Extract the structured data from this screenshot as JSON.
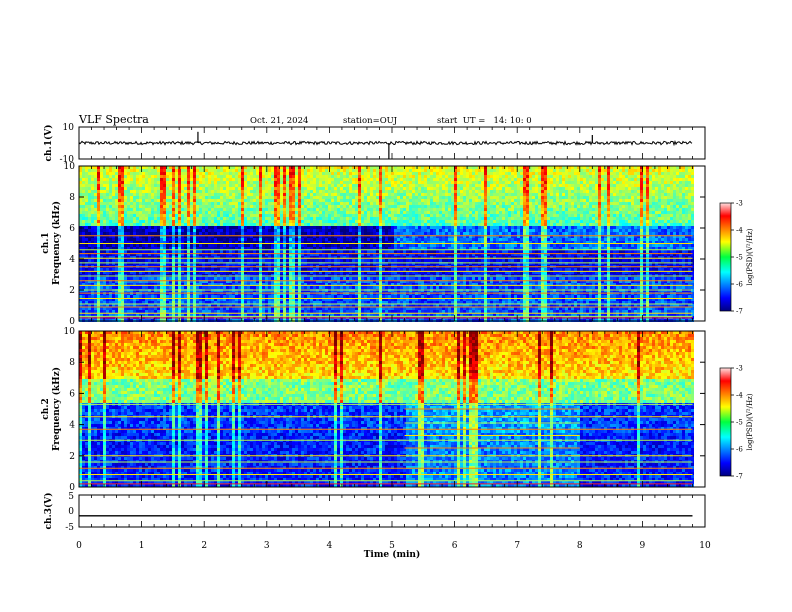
{
  "header": {
    "title": "VLF Spectra",
    "date": "Oct. 21, 2024",
    "station": "station=OUJ",
    "start_ut": "start  UT =   14: 10: 0"
  },
  "chart_data": [
    {
      "type": "line",
      "panel": "ch1-waveform",
      "ylabel": "ch.1(V)",
      "ylim": [
        -10,
        10
      ],
      "yticks": [
        "10",
        "-10"
      ],
      "series": [
        {
          "values_note_mean": 0,
          "amplitude": 1
        }
      ],
      "mean_level": 0,
      "noise_amplitude": 1,
      "spikes": [
        {
          "x": 1.9,
          "y": 7
        },
        {
          "x": 4.95,
          "y": -10
        },
        {
          "x": 8.2,
          "y": 5
        }
      ]
    },
    {
      "type": "heatmap",
      "panel": "ch1-spectrogram",
      "xlim": [
        0,
        10
      ],
      "ylim": [
        0,
        10
      ],
      "ylabel": "ch.1\nFrequency (kHz)",
      "ylabel_lines": [
        "ch.1",
        "Frequency (kHz)"
      ],
      "yticks": [
        "0",
        "2",
        "4",
        "6",
        "8",
        "10"
      ],
      "colorbar": {
        "label": "log(PSD)(V²/Hz)",
        "range": [
          -7,
          -3
        ],
        "ticks": [
          "-3",
          "-4",
          "-5",
          "-6",
          "-7"
        ]
      },
      "lines_khz": [
        0.3,
        0.5,
        0.9,
        1.1,
        1.45,
        1.8,
        2.0,
        2.3,
        2.6,
        2.9,
        3.2,
        3.5,
        3.75,
        4.05,
        4.35,
        4.6,
        5.0,
        5.5
      ],
      "data_end_min": 9.8
    },
    {
      "type": "heatmap",
      "panel": "ch2-spectrogram",
      "xlim": [
        0,
        10
      ],
      "ylim": [
        0,
        10
      ],
      "ylabel_lines": [
        "ch.2",
        "Frequency (kHz)"
      ],
      "yticks": [
        "0",
        "2",
        "4",
        "6",
        "8",
        "10"
      ],
      "colorbar": {
        "label": "log(PSD)(V²/Hz)",
        "range": [
          -7,
          -3
        ],
        "ticks": [
          "-3",
          "-4",
          "-5",
          "-6",
          "-7"
        ]
      },
      "lines_khz": [
        0.4,
        0.8,
        1.2,
        1.6,
        2.0,
        2.5,
        3.0,
        3.3,
        3.7,
        4.1,
        4.5,
        5.0,
        5.3
      ],
      "burst_window_min": [
        5.2,
        8.0
      ],
      "data_end_min": 9.8
    },
    {
      "type": "line",
      "panel": "ch3-waveform",
      "ylabel": "ch.3(V)",
      "ylim": [
        -5,
        5
      ],
      "yticks": [
        "5",
        "0",
        "-5"
      ],
      "mean_level": -1.5,
      "x_axis": {
        "label": "Time (min)",
        "range": [
          0,
          10
        ],
        "ticks": [
          "0",
          "1",
          "2",
          "3",
          "4",
          "5",
          "6",
          "7",
          "8",
          "9",
          "10"
        ]
      }
    }
  ]
}
